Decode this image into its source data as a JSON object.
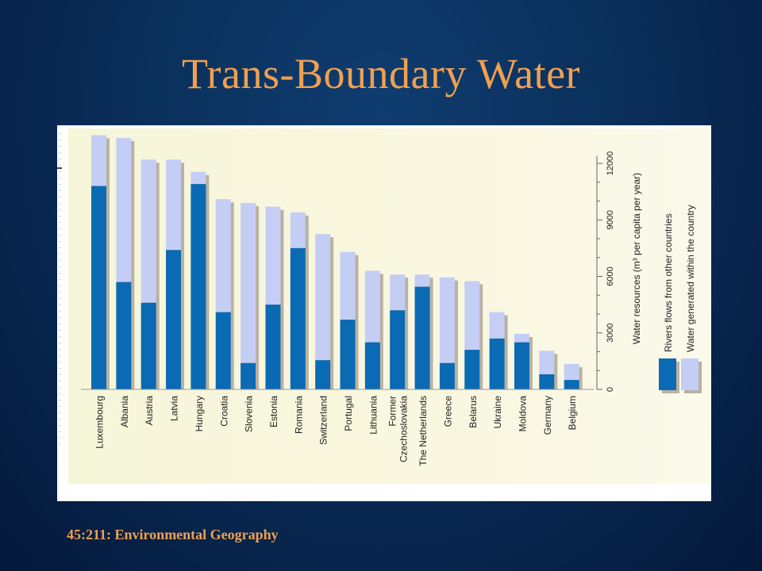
{
  "slide": {
    "title": "Trans-Boundary Water",
    "footer": "45:211: Environmental Geography"
  },
  "chart_data": {
    "type": "bar",
    "stacked": true,
    "title": "",
    "xlabel": "",
    "ylabel": "Water resources (m³ per capita per year)",
    "ylim": [
      0,
      13000
    ],
    "yticks": [
      0,
      3000,
      6000,
      9000,
      12000
    ],
    "legend_position": "right",
    "grid": false,
    "categories": [
      "Luxembourg",
      "Albania",
      "Austria",
      "Latvia",
      "Hungary",
      "Croatia",
      "Slovenia",
      "Estonia",
      "Romania",
      "Switzerland",
      "Portugal",
      "Lithuania",
      "Former Czechoslovakia",
      "The Netherlands",
      "Greece",
      "Belarus",
      "Ukraine",
      "Moldova",
      "Germany",
      "Belgium"
    ],
    "series": [
      {
        "name": "Rivers flows from other countries",
        "color": "#0a6ab4",
        "values": [
          10800,
          5700,
          4600,
          7400,
          10900,
          4100,
          1400,
          4500,
          7500,
          1550,
          3700,
          2500,
          4200,
          5450,
          1400,
          2100,
          2700,
          2500,
          800,
          500
        ]
      },
      {
        "name": "Water generated within the country",
        "color": "#c4cef5",
        "values": [
          2700,
          7650,
          7600,
          4800,
          650,
          6000,
          8500,
          5200,
          1900,
          6700,
          3600,
          3800,
          1900,
          650,
          4550,
          3650,
          1400,
          450,
          1250,
          850
        ]
      }
    ]
  }
}
